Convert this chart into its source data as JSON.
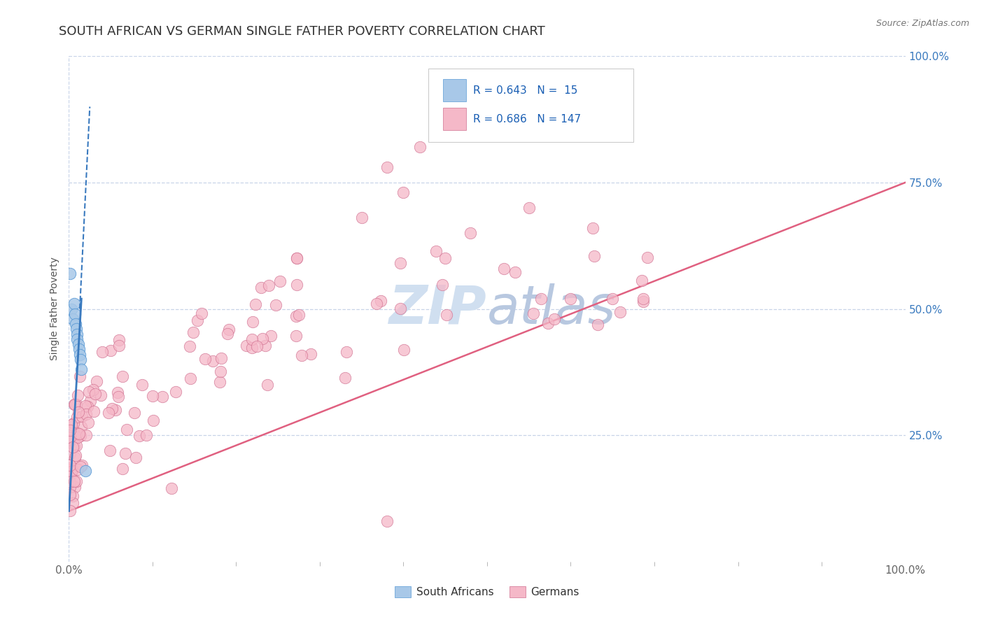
{
  "title": "SOUTH AFRICAN VS GERMAN SINGLE FATHER POVERTY CORRELATION CHART",
  "source": "Source: ZipAtlas.com",
  "sa_R": 0.643,
  "sa_N": 15,
  "de_R": 0.686,
  "de_N": 147,
  "sa_color": "#a8c8e8",
  "de_color": "#f5b8c8",
  "sa_line_color": "#3a7abf",
  "de_line_color": "#e06080",
  "sa_edge_color": "#5a9ad5",
  "de_edge_color": "#d07090",
  "background_color": "#ffffff",
  "grid_color": "#c8d4e8",
  "watermark": "ZIPAtlas",
  "watermark_color": "#d0dff0",
  "title_color": "#333333",
  "ylabel_text": "Single Father Poverty",
  "right_tick_color": "#3a7abf",
  "bottom_tick_color": "#888888"
}
